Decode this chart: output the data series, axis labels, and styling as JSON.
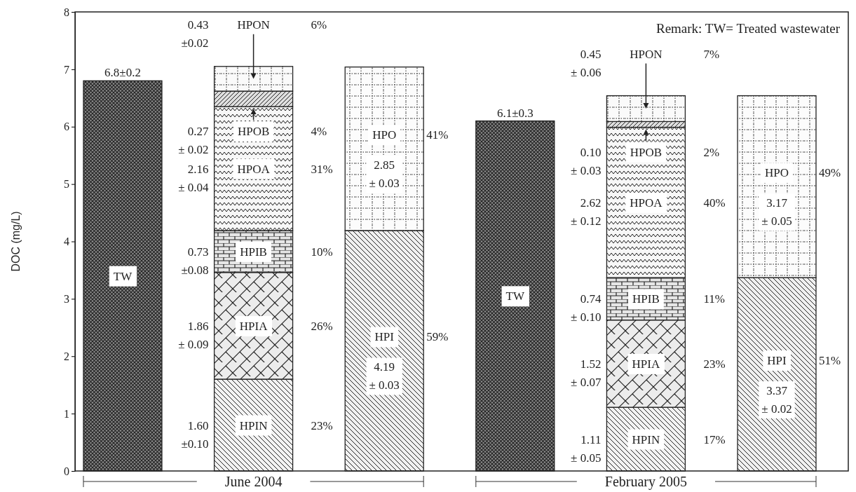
{
  "chart_data": {
    "type": "bar",
    "stacked": true,
    "ylabel": "DOC (mg/L)",
    "categories": [
      null,
      null,
      null,
      null,
      null,
      null
    ],
    "ylim": [
      0,
      8
    ],
    "yticks": [
      0,
      1,
      2,
      3,
      4,
      5,
      6,
      7,
      8
    ],
    "grid": false,
    "series": [
      {
        "name": "TW",
        "color": "#8a8a8a",
        "values": [
          6.8,
          null,
          null,
          6.1,
          null,
          null
        ],
        "value_labels": [
          "6.8±0.2",
          null,
          null,
          "6.1±0.3",
          null,
          null
        ]
      },
      {
        "name": "HPIN",
        "color": "#f2f2f2",
        "values": [
          null,
          1.6,
          null,
          null,
          1.11,
          null
        ]
      },
      {
        "name": "HPIA",
        "color": "#ececec",
        "values": [
          null,
          1.86,
          null,
          null,
          1.52,
          null
        ]
      },
      {
        "name": "HPIB",
        "color": "#e6e6e6",
        "values": [
          null,
          0.73,
          null,
          null,
          0.74,
          null
        ]
      },
      {
        "name": "HPOA",
        "color": "#f7f7f7",
        "values": [
          null,
          2.16,
          null,
          null,
          2.62,
          null
        ]
      },
      {
        "name": "HPOB",
        "color": "#dedede",
        "values": [
          null,
          0.27,
          null,
          null,
          0.1,
          null
        ]
      },
      {
        "name": "HPON",
        "color": "#fafafa",
        "values": [
          null,
          0.43,
          null,
          null,
          0.45,
          null
        ]
      },
      {
        "name": "HPI",
        "color": "#f0f0f0",
        "values": [
          null,
          null,
          4.19,
          null,
          null,
          3.37
        ],
        "value_labels": [
          null,
          null,
          "4.19\n± 0.03",
          null,
          null,
          "3.37\n± 0.02"
        ]
      },
      {
        "name": "HPO",
        "color": "#fcfcfc",
        "values": [
          null,
          null,
          2.85,
          null,
          null,
          3.17
        ],
        "value_labels": [
          null,
          null,
          "2.85\n± 0.03",
          null,
          null,
          "3.17\n± 0.05"
        ]
      }
    ],
    "annotations": [
      "Remark: TW= Treated wastewater",
      "June 2004",
      "February 2005",
      "23%",
      "26%",
      "10%",
      "31%",
      "4%",
      "6%",
      "59%",
      "41%",
      "17%",
      "23%",
      "11%",
      "40%",
      "2%",
      "7%",
      "51%",
      "49%",
      "1.60\n±0.10",
      "1.86\n± 0.09",
      "0.73\n±0.08",
      "2.16\n± 0.04",
      "0.27\n± 0.02",
      "0.43\n±0.02",
      "1.11\n± 0.05",
      "1.52\n± 0.07",
      "0.74\n± 0.10",
      "2.62\n± 0.12",
      "0.10\n± 0.03",
      "0.45\n± 0.06"
    ]
  }
}
